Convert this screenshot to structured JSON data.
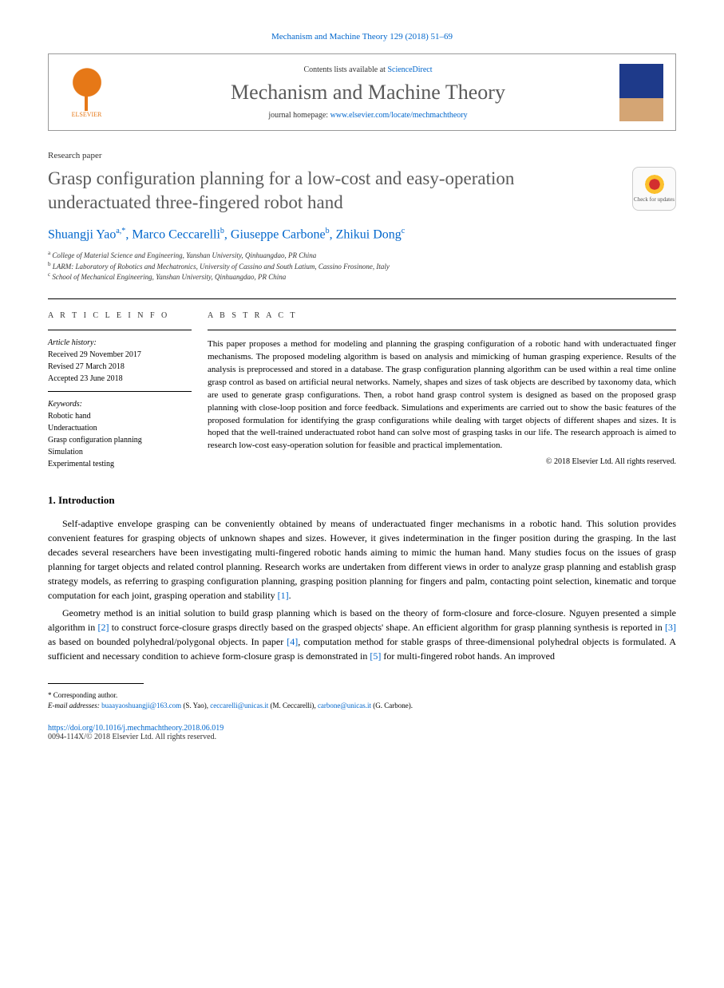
{
  "journal_ref": "Mechanism and Machine Theory 129 (2018) 51–69",
  "header": {
    "contents_prefix": "Contents lists available at ",
    "contents_link": "ScienceDirect",
    "journal_title": "Mechanism and Machine Theory",
    "homepage_prefix": "journal homepage: ",
    "homepage_link": "www.elsevier.com/locate/mechmachtheory",
    "elsevier_label": "ELSEVIER"
  },
  "paper_type": "Research paper",
  "title": "Grasp configuration planning for a low-cost and easy-operation underactuated three-fingered robot hand",
  "check_updates": "Check for updates",
  "authors": [
    {
      "name": "Shuangji Yao",
      "sup": "a,*"
    },
    {
      "name": "Marco Ceccarelli",
      "sup": "b"
    },
    {
      "name": "Giuseppe Carbone",
      "sup": "b"
    },
    {
      "name": "Zhikui Dong",
      "sup": "c"
    }
  ],
  "affiliations": [
    {
      "sup": "a",
      "text": "College of Material Science and Engineering, Yanshan University, Qinhuangdao, PR China"
    },
    {
      "sup": "b",
      "text": "LARM: Laboratory of Robotics and Mechatronics, University of Cassino and South Latium, Cassino Frosinone, Italy"
    },
    {
      "sup": "c",
      "text": "School of Mechanical Engineering, Yanshan University, Qinhuangdao, PR China"
    }
  ],
  "article_info": {
    "heading": "A R T I C L E   I N F O",
    "history_label": "Article history:",
    "received": "Received 29 November 2017",
    "revised": "Revised 27 March 2018",
    "accepted": "Accepted 23 June 2018",
    "keywords_label": "Keywords:",
    "keywords": [
      "Robotic hand",
      "Underactuation",
      "Grasp configuration planning",
      "Simulation",
      "Experimental testing"
    ]
  },
  "abstract": {
    "heading": "A B S T R A C T",
    "text": "This paper proposes a method for modeling and planning the grasping configuration of a robotic hand with underactuated finger mechanisms. The proposed modeling algorithm is based on analysis and mimicking of human grasping experience. Results of the analysis is preprocessed and stored in a database. The grasp configuration planning algorithm can be used within a real time online grasp control as based on artificial neural networks. Namely, shapes and sizes of task objects are described by taxonomy data, which are used to generate grasp configurations. Then, a robot hand grasp control system is designed as based on the proposed grasp planning with close-loop position and force feedback. Simulations and experiments are carried out to show the basic features of the proposed formulation for identifying the grasp configurations while dealing with target objects of different shapes and sizes. It is hoped that the well-trained underactuated robot hand can solve most of grasping tasks in our life. The research approach is aimed to research low-cost easy-operation solution for feasible and practical implementation.",
    "copyright": "© 2018 Elsevier Ltd. All rights reserved."
  },
  "intro": {
    "heading": "1. Introduction",
    "p1_a": "Self-adaptive envelope grasping can be conveniently obtained by means of underactuated finger mechanisms in a robotic hand. This solution provides convenient features for grasping objects of unknown shapes and sizes. However, it gives indetermination in the finger position during the grasping. In the last decades several researchers have been investigating multi-fingered robotic hands aiming to mimic the human hand. Many studies focus on the issues of grasp planning for target objects and related control planning. Research works are undertaken from different views in order to analyze grasp planning and establish grasp strategy models, as referring to grasping configuration planning, grasping position planning for fingers and palm, contacting point selection, kinematic and torque computation for each joint, grasping operation and stability ",
    "p1_ref1": "[1]",
    "p1_b": ".",
    "p2_a": "Geometry method is an initial solution to build grasp planning which is based on the theory of form-closure and force-closure. Nguyen presented a simple algorithm in ",
    "p2_ref2": "[2]",
    "p2_b": " to construct force-closure grasps directly based on the grasped objects' shape. An efficient algorithm for grasp planning synthesis is reported in ",
    "p2_ref3": "[3]",
    "p2_c": " as based on bounded polyhedral/polygonal objects. In paper ",
    "p2_ref4": "[4]",
    "p2_d": ", computation method for stable grasps of three-dimensional polyhedral objects is formulated. A sufficient and necessary condition to achieve form-closure grasp is demonstrated in ",
    "p2_ref5": "[5]",
    "p2_e": " for multi-fingered robot hands. An improved"
  },
  "footer": {
    "corresponding": "* Corresponding author.",
    "email_label": "E-mail addresses: ",
    "emails": [
      {
        "addr": "buaayaoshuangji@163.com",
        "who": "(S. Yao)"
      },
      {
        "addr": "ceccarelli@unicas.it",
        "who": "(M. Ceccarelli)"
      },
      {
        "addr": "carbone@unicas.it",
        "who": "(G. Carbone)"
      }
    ],
    "doi": "https://doi.org/10.1016/j.mechmachtheory.2018.06.019",
    "rights": "0094-114X/© 2018 Elsevier Ltd. All rights reserved."
  },
  "colors": {
    "link": "#0066cc",
    "title_gray": "#5a5a5a",
    "elsevier_orange": "#e67817"
  }
}
